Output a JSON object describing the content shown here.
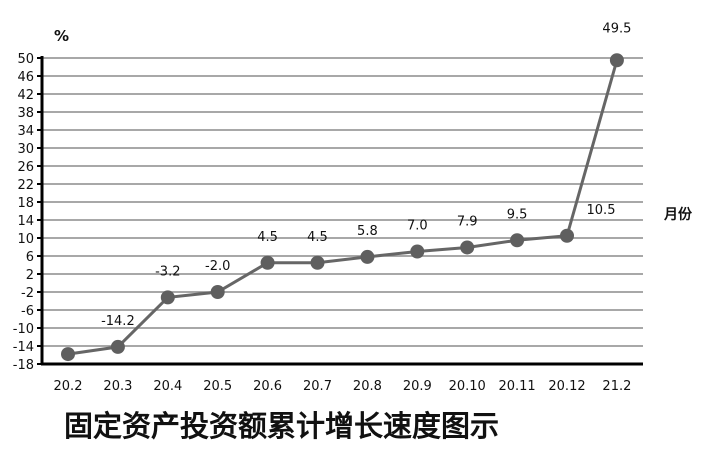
{
  "chart_data": {
    "type": "line",
    "title": "固定资产投资额累计增长速度图示",
    "xlabel": "月份",
    "ylabel": "%",
    "categories": [
      "20.2",
      "20.3",
      "20.4",
      "20.5",
      "20.6",
      "20.7",
      "20.8",
      "20.9",
      "20.10",
      "20.11",
      "20.12",
      "21.2"
    ],
    "series": [
      {
        "values": [
          -15.8,
          -14.2,
          -3.2,
          -2.0,
          4.5,
          4.5,
          5.8,
          7.0,
          7.9,
          9.5,
          10.5,
          49.5
        ],
        "labels": [
          null,
          "-14.2",
          "-3.2",
          "-2.0",
          "4.5",
          "4.5",
          "5.8",
          "7.0",
          "7.9",
          "9.5",
          "10.5",
          "49.5"
        ]
      }
    ],
    "ylim": [
      -18,
      50
    ],
    "yticks": [
      "50",
      "46",
      "42",
      "38",
      "34",
      "30",
      "26",
      "22",
      "18",
      "14",
      "10",
      "6",
      "2",
      "-2",
      "-6",
      "-10",
      "-14",
      "-18"
    ],
    "grid": true,
    "colors": {
      "line": "#666666",
      "marker": "#5f5f5f",
      "grid": "#8c8c8c",
      "axis": "#000000"
    }
  }
}
